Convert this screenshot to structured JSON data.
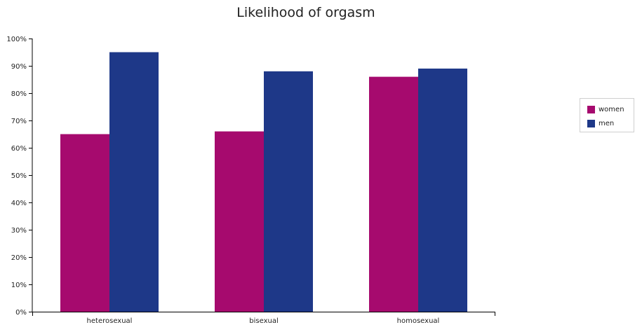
{
  "chart_data": {
    "type": "bar",
    "title": "Likelihood of orgasm",
    "categories": [
      "heterosexual",
      "bisexual",
      "homosexual"
    ],
    "series": [
      {
        "name": "women",
        "color": "#a60a6e",
        "values": [
          65,
          66,
          86
        ]
      },
      {
        "name": "men",
        "color": "#1e3888",
        "values": [
          95,
          88,
          89
        ]
      }
    ],
    "ylim": [
      0,
      100
    ],
    "yticks": [
      "0%",
      "10%",
      "20%",
      "30%",
      "40%",
      "50%",
      "60%",
      "70%",
      "80%",
      "90%",
      "100%"
    ],
    "xlabel": "",
    "ylabel": "",
    "legend_position": "right"
  }
}
